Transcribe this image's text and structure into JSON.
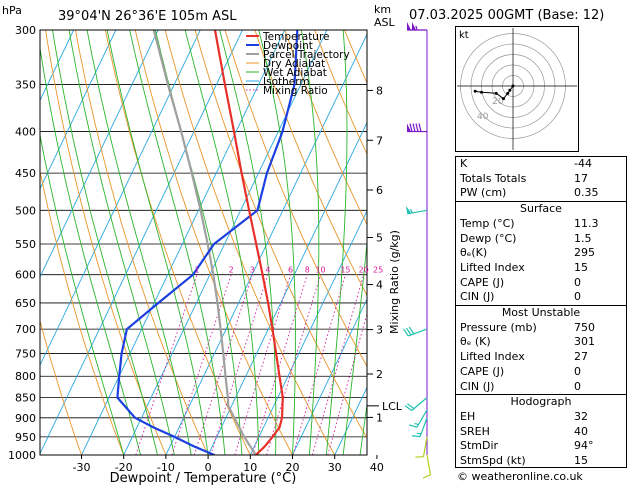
{
  "header": {
    "pressure_unit": "hPa",
    "location": "39°04'N  26°36'E  105m  ASL",
    "height_unit_top": "km",
    "height_unit_bottom": "ASL",
    "datetime": "07.03.2025  00GMT  (Base: 12)"
  },
  "chart_data": {
    "type": "line",
    "xlabel": "Dewpoint / Temperature (°C)",
    "ylabel_right": "Mixing Ratio (g/kg)",
    "x_ticks": [
      -30,
      -20,
      -10,
      0,
      10,
      20,
      30,
      40
    ],
    "xlim": [
      -37,
      40
    ],
    "pressure_ticks": [
      300,
      350,
      400,
      450,
      500,
      550,
      600,
      650,
      700,
      750,
      800,
      850,
      900,
      950,
      1000
    ],
    "ylim": [
      1000,
      300
    ],
    "y_scale": "log",
    "height_ticks": [
      {
        "label": "8",
        "p": 356
      },
      {
        "label": "7",
        "p": 410
      },
      {
        "label": "6",
        "p": 472
      },
      {
        "label": "5",
        "p": 540
      },
      {
        "label": "4",
        "p": 617
      },
      {
        "label": "3",
        "p": 701
      },
      {
        "label": "2",
        "p": 795
      },
      {
        "label": "1",
        "p": 899
      }
    ],
    "lcl": {
      "label": "LCL",
      "p": 870
    },
    "mixing_ratio_labels": [
      "1",
      "2",
      "3",
      "4",
      "6",
      "8",
      "10",
      "15",
      "20",
      "25"
    ],
    "mixing_ratio_values": [
      1,
      2,
      3,
      4,
      6,
      8,
      10,
      15,
      20,
      25
    ],
    "legend": [
      "Temperature",
      "Dewpoint",
      "Parcel Trajectory",
      "Dry Adiabat",
      "Wet Adiabat",
      "Isotherm",
      "Mixing Ratio"
    ],
    "legend_placement": "top-right",
    "colors": {
      "temperature": "#e8302a",
      "dewpoint": "#1b3fe0",
      "parcel": "#a0a0a0",
      "dry_adiabat": "#e8952a",
      "wet_adiabat": "#2ab52a",
      "isotherm": "#2aa9e0",
      "mixing_ratio": "#d6189c",
      "wind_barb": "#7b16c8",
      "wind_barb_low": "#20c0b0",
      "wind_barb_sfc": "#b0d020"
    },
    "series": [
      {
        "name": "Temperature",
        "points": [
          [
            1000,
            11.3
          ],
          [
            975,
            12.5
          ],
          [
            950,
            13.2
          ],
          [
            925,
            13.8
          ],
          [
            900,
            13.3
          ],
          [
            850,
            11.2
          ],
          [
            800,
            8.0
          ],
          [
            750,
            4.6
          ],
          [
            700,
            1.0
          ],
          [
            650,
            -3.0
          ],
          [
            600,
            -7.5
          ],
          [
            550,
            -12.5
          ],
          [
            500,
            -18.0
          ],
          [
            450,
            -24.0
          ],
          [
            400,
            -30.5
          ],
          [
            350,
            -38.0
          ],
          [
            300,
            -46.5
          ]
        ]
      },
      {
        "name": "Dewpoint",
        "points": [
          [
            1000,
            1.5
          ],
          [
            975,
            -4.5
          ],
          [
            950,
            -10.0
          ],
          [
            925,
            -16.0
          ],
          [
            900,
            -21.5
          ],
          [
            850,
            -28.0
          ],
          [
            800,
            -30.0
          ],
          [
            750,
            -32.0
          ],
          [
            700,
            -33.5
          ],
          [
            650,
            -29.0
          ],
          [
            600,
            -24.0
          ],
          [
            550,
            -22.5
          ],
          [
            500,
            -16.0
          ],
          [
            450,
            -18.0
          ],
          [
            400,
            -19.0
          ],
          [
            350,
            -21.5
          ],
          [
            300,
            -27.0
          ]
        ]
      },
      {
        "name": "Parcel Trajectory",
        "points": [
          [
            1000,
            11.3
          ],
          [
            950,
            6.5
          ],
          [
            900,
            2.0
          ],
          [
            870,
            -0.8
          ],
          [
            850,
            -1.8
          ],
          [
            800,
            -4.8
          ],
          [
            750,
            -7.9
          ],
          [
            700,
            -11.3
          ],
          [
            650,
            -15.0
          ],
          [
            600,
            -19.2
          ],
          [
            550,
            -24.0
          ],
          [
            500,
            -29.5
          ],
          [
            450,
            -35.8
          ],
          [
            400,
            -43.0
          ],
          [
            350,
            -51.5
          ],
          [
            300,
            -61.0
          ]
        ]
      }
    ],
    "wind_barbs": [
      {
        "p": 300,
        "dir": 270,
        "speed": 105
      },
      {
        "p": 400,
        "dir": 270,
        "speed": 90
      },
      {
        "p": 500,
        "dir": 260,
        "speed": 55
      },
      {
        "p": 700,
        "dir": 250,
        "speed": 30
      },
      {
        "p": 850,
        "dir": 230,
        "speed": 20
      },
      {
        "p": 880,
        "dir": 210,
        "speed": 15
      },
      {
        "p": 900,
        "dir": 200,
        "speed": 15
      },
      {
        "p": 950,
        "dir": 190,
        "speed": 10
      },
      {
        "p": 1000,
        "dir": 170,
        "speed": 10
      }
    ]
  },
  "hodograph": {
    "unit": "kt",
    "ring_labels": [
      "20",
      "40"
    ],
    "trace_uv": [
      [
        0,
        0
      ],
      [
        -3,
        4
      ],
      [
        -5,
        7
      ],
      [
        -9,
        12
      ],
      [
        -16,
        7
      ],
      [
        -30,
        6
      ],
      [
        -36,
        5
      ]
    ]
  },
  "indices": {
    "top": [
      {
        "label": "K",
        "value": "-44"
      },
      {
        "label": "Totals Totals",
        "value": "17"
      },
      {
        "label": "PW (cm)",
        "value": "0.35"
      }
    ],
    "surface_title": "Surface",
    "surface": [
      {
        "label": "Temp (°C)",
        "value": "11.3"
      },
      {
        "label": "Dewp (°C)",
        "value": "1.5"
      },
      {
        "label": "θₑ(K)",
        "value": "295"
      },
      {
        "label": "Lifted Index",
        "value": "15"
      },
      {
        "label": "CAPE (J)",
        "value": "0"
      },
      {
        "label": "CIN (J)",
        "value": "0"
      }
    ],
    "mu_title": "Most Unstable",
    "most_unstable": [
      {
        "label": "Pressure (mb)",
        "value": "750"
      },
      {
        "label": "θₑ (K)",
        "value": "301"
      },
      {
        "label": "Lifted Index",
        "value": "27"
      },
      {
        "label": "CAPE (J)",
        "value": "0"
      },
      {
        "label": "CIN (J)",
        "value": "0"
      }
    ],
    "hodo_title": "Hodograph",
    "hodograph": [
      {
        "label": "EH",
        "value": "32"
      },
      {
        "label": "SREH",
        "value": "40"
      },
      {
        "label": "StmDir",
        "value": "94°"
      },
      {
        "label": "StmSpd (kt)",
        "value": "15"
      }
    ]
  },
  "footer": "© weatheronline.co.uk"
}
